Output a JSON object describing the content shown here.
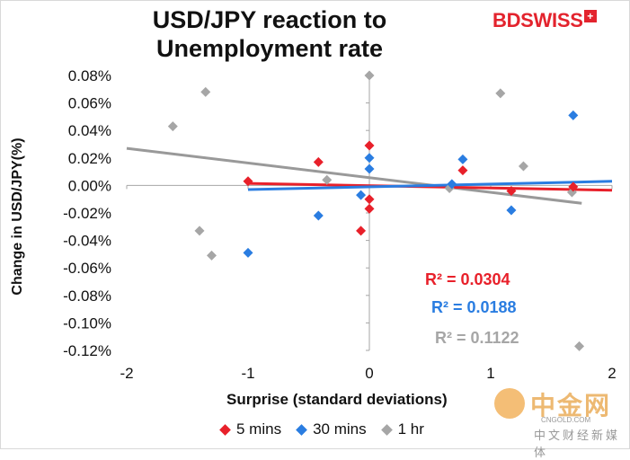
{
  "title": "USD/JPY reaction to Unemployment rate",
  "title_line1": "USD/JPY reaction to",
  "title_line2": "Unemployment rate",
  "logo_text": "BDSWISS",
  "watermark": {
    "brand": "中金网",
    "domain": "CNGOLD.COM",
    "subtitle": "中文财经新媒体"
  },
  "colors": {
    "s5": "#e8202a",
    "s30": "#2a7de1",
    "s1h": "#a6a6a6",
    "trend_1h": "#999999"
  },
  "chart_data": {
    "type": "scatter",
    "xlabel": "Surprise (standard deviations)",
    "ylabel": "Change in USD/JPY(%)",
    "xlim": [
      -2,
      2
    ],
    "ylim": [
      -0.12,
      0.08
    ],
    "xticks": [
      "-2",
      "-1",
      "0",
      "1",
      "2"
    ],
    "yticks": [
      "0.08%",
      "0.06%",
      "0.04%",
      "0.02%",
      "0.00%",
      "-0.02%",
      "-0.04%",
      "-0.06%",
      "-0.08%",
      "-0.10%",
      "-0.12%"
    ],
    "ytick_values": [
      0.08,
      0.06,
      0.04,
      0.02,
      0.0,
      -0.02,
      -0.04,
      -0.06,
      -0.08,
      -0.1,
      -0.12
    ],
    "xtick_values": [
      -2,
      -1,
      0,
      1,
      2
    ],
    "grid": false,
    "legend": "bottom",
    "series": [
      {
        "name": "5 mins",
        "color": "#e8202a",
        "points": [
          [
            -1.0,
            0.003
          ],
          [
            -0.42,
            0.017
          ],
          [
            0.0,
            0.029
          ],
          [
            0.0,
            -0.01
          ],
          [
            0.0,
            -0.017
          ],
          [
            -0.07,
            -0.033
          ],
          [
            0.77,
            0.011
          ],
          [
            1.17,
            -0.004
          ],
          [
            1.68,
            -0.001
          ]
        ],
        "trend": {
          "x": [
            -1.0,
            2.0
          ],
          "y": [
            0.0015,
            -0.0035
          ]
        },
        "r2": "R² = 0.0304"
      },
      {
        "name": "30 mins",
        "color": "#2a7de1",
        "points": [
          [
            -1.0,
            -0.049
          ],
          [
            -0.42,
            -0.022
          ],
          [
            -0.07,
            -0.007
          ],
          [
            0.0,
            0.02
          ],
          [
            0.0,
            0.012
          ],
          [
            0.68,
            0.001
          ],
          [
            0.77,
            0.019
          ],
          [
            1.17,
            -0.018
          ],
          [
            1.68,
            0.051
          ]
        ],
        "trend": {
          "x": [
            -1.0,
            2.0
          ],
          "y": [
            -0.003,
            0.003
          ]
        },
        "r2": "R² = 0.0188"
      },
      {
        "name": "1 hr",
        "color": "#a6a6a6",
        "points": [
          [
            -1.62,
            0.043
          ],
          [
            -1.35,
            0.068
          ],
          [
            -1.4,
            -0.033
          ],
          [
            -1.3,
            -0.051
          ],
          [
            -0.35,
            0.004
          ],
          [
            0.0,
            0.08
          ],
          [
            0.66,
            -0.002
          ],
          [
            1.08,
            0.067
          ],
          [
            1.27,
            0.014
          ],
          [
            1.67,
            -0.005
          ],
          [
            1.73,
            -0.117
          ]
        ],
        "trend": {
          "x": [
            -2.0,
            1.75
          ],
          "y": [
            0.027,
            -0.013
          ]
        },
        "r2": "R² = 0.1122"
      }
    ]
  }
}
